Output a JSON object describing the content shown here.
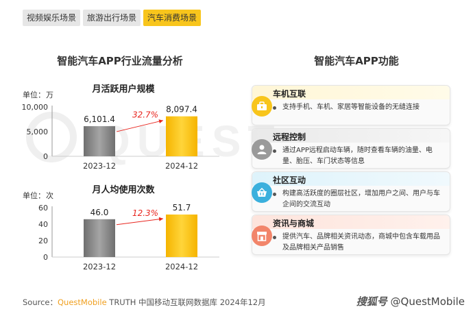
{
  "tabs": [
    {
      "label": "视频娱乐场景",
      "active": false
    },
    {
      "label": "旅游出行场景",
      "active": false
    },
    {
      "label": "汽车消费场景",
      "active": true
    }
  ],
  "left_title": "智能汽车APP行业流量分析",
  "right_title": "智能汽车APP功能",
  "colors": {
    "accent": "#f8c51c",
    "bar_gray": "#8c8c8c",
    "arrow": "#e8261f"
  },
  "chart_data": [
    {
      "type": "bar",
      "title": "月活跃用户规模",
      "unit_label": "单位：",
      "unit": "万",
      "categories": [
        "2023-12",
        "2024-12"
      ],
      "values": [
        6101.4,
        8097.4
      ],
      "value_labels": [
        "6,101.4",
        "8,097.4"
      ],
      "yticks": [
        "10,000",
        "5,000",
        "0"
      ],
      "ytick_values": [
        10000,
        5000,
        0
      ],
      "ylim": [
        0,
        10000
      ],
      "growth": "32.7%"
    },
    {
      "type": "bar",
      "title": "月人均使用次数",
      "unit_label": "单位：",
      "unit": "次",
      "categories": [
        "2023-12",
        "2024-12"
      ],
      "values": [
        46.0,
        51.7
      ],
      "value_labels": [
        "46.0",
        "51.7"
      ],
      "yticks": [
        "60",
        "40",
        "20",
        "0"
      ],
      "ytick_values": [
        60,
        40,
        20,
        0
      ],
      "ylim": [
        0,
        60
      ],
      "growth": "12.3%"
    }
  ],
  "features": [
    {
      "title": "车机互联",
      "icon": "briefcase-icon",
      "desc": "支持手机、车机、家居等智能设备的无缝连接"
    },
    {
      "title": "远程控制",
      "icon": "user-icon",
      "desc": "通过APP远程启动车辆，随时查看车辆的油量、电量、胎压、车门状态等信息"
    },
    {
      "title": "社区互动",
      "icon": "basket-icon",
      "desc": "构建高活跃度的圈层社区，增加用户之间、用户与车企间的交流互动"
    },
    {
      "title": "资讯与商城",
      "icon": "shop-icon",
      "desc": "提供汽车、品牌相关资讯动态，商城中包含车载用品及品牌相关产品销售"
    }
  ],
  "footer": {
    "source_label": "Source：",
    "brand": "QuestMobile",
    "text": " TRUTH 中国移动互联网数据库 2024年12月"
  },
  "logo": {
    "app_name": "搜狐号",
    "account": "@QuestMobile"
  }
}
